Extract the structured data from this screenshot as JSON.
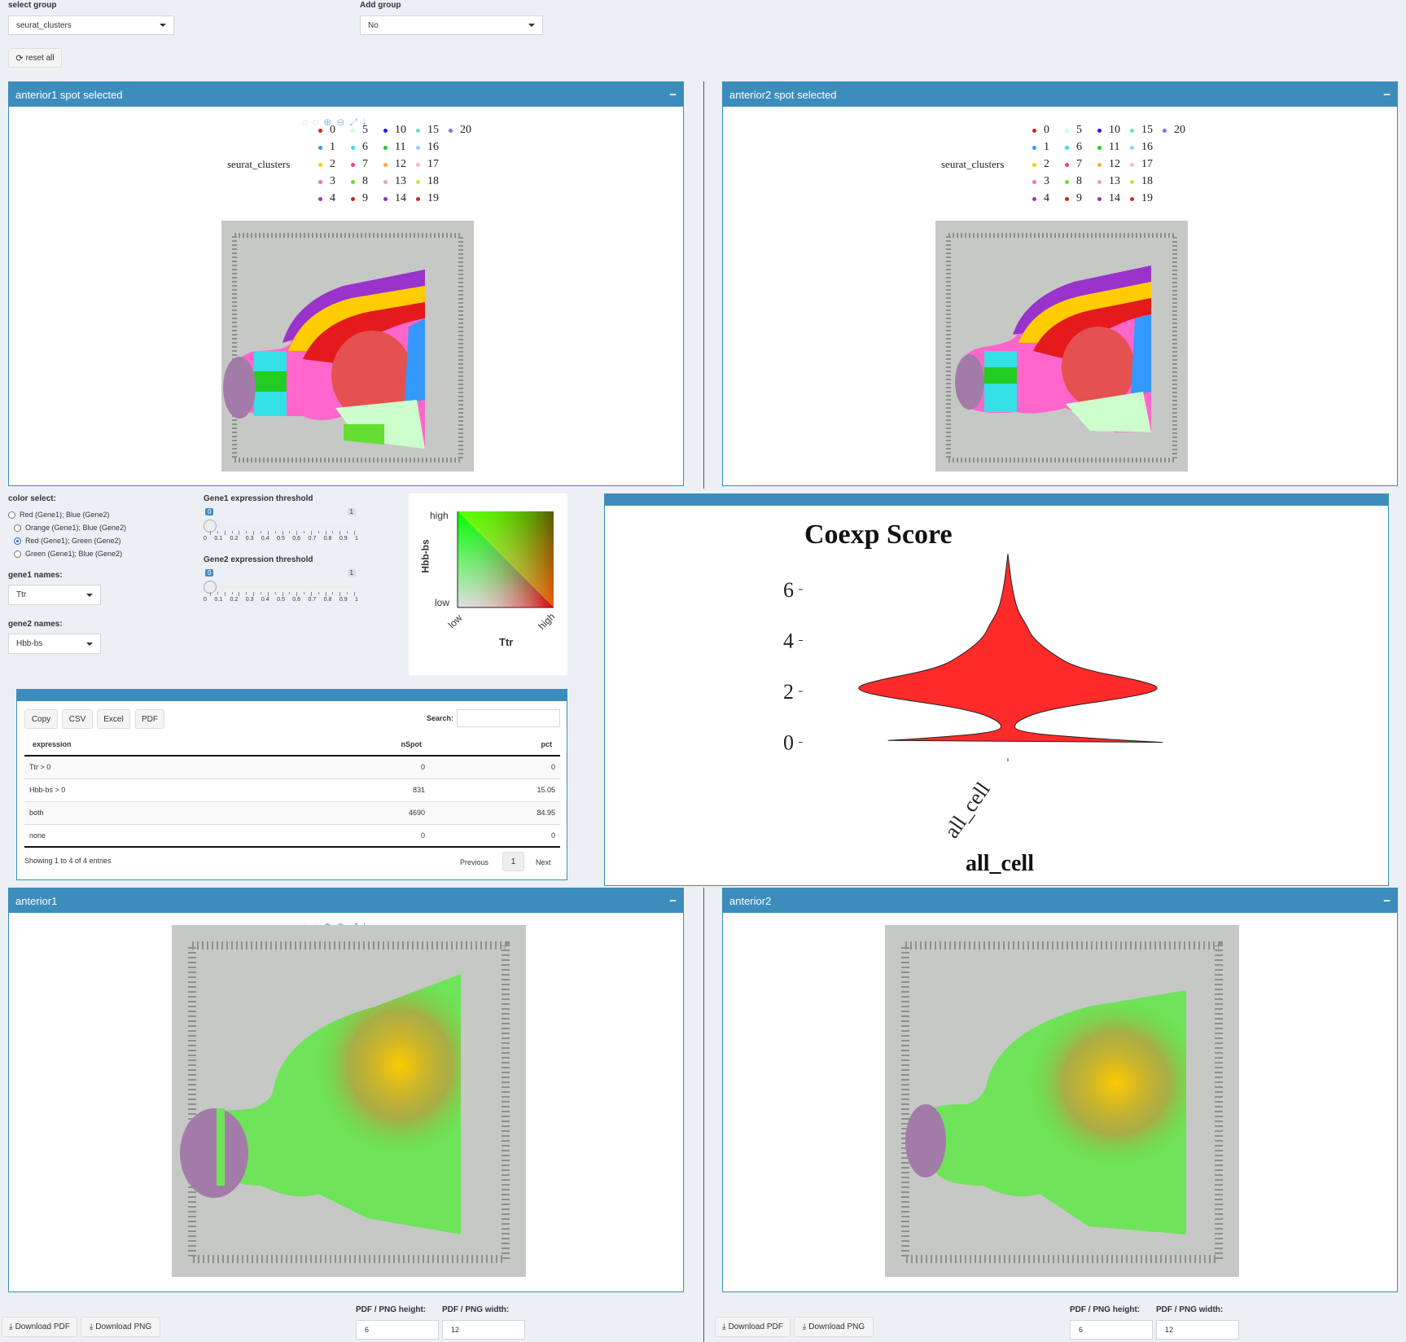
{
  "controls": {
    "select_group_label": "select group",
    "select_group_value": "seurat_clusters",
    "add_group_label": "Add group",
    "add_group_value": "No",
    "reset_label": "reset all"
  },
  "panels": {
    "spot1_title": "anterior1 spot selected",
    "spot2_title": "anterior2 spot selected",
    "legend_title": "seurat_clusters",
    "legend_items": [
      {
        "label": "0",
        "color": "#e41a1c"
      },
      {
        "label": "5",
        "color": "#ccffcc"
      },
      {
        "label": "10",
        "color": "#1a1ae6"
      },
      {
        "label": "15",
        "color": "#66e0b3"
      },
      {
        "label": "20",
        "color": "#9966e6"
      },
      {
        "label": "1",
        "color": "#3399ff"
      },
      {
        "label": "6",
        "color": "#33e0e6"
      },
      {
        "label": "11",
        "color": "#22cc22"
      },
      {
        "label": "16",
        "color": "#99ccff"
      },
      {
        "label": "",
        "color": "transparent"
      },
      {
        "label": "2",
        "color": "#ffcc00"
      },
      {
        "label": "7",
        "color": "#ff3399"
      },
      {
        "label": "12",
        "color": "#ffaa33"
      },
      {
        "label": "17",
        "color": "#ffb6c1"
      },
      {
        "label": "",
        "color": "transparent"
      },
      {
        "label": "3",
        "color": "#ff66cc"
      },
      {
        "label": "8",
        "color": "#66dd33"
      },
      {
        "label": "13",
        "color": "#e6a0c8"
      },
      {
        "label": "18",
        "color": "#dddd33"
      },
      {
        "label": "",
        "color": "transparent"
      },
      {
        "label": "4",
        "color": "#9933cc"
      },
      {
        "label": "9",
        "color": "#cc2222"
      },
      {
        "label": "14",
        "color": "#8833cc"
      },
      {
        "label": "19",
        "color": "#dd2222"
      },
      {
        "label": "",
        "color": "transparent"
      }
    ],
    "bottom1_title": "anterior1",
    "bottom2_title": "anterior2"
  },
  "color_select": {
    "label": "color select:",
    "options": [
      "Red (Gene1); Blue (Gene2)",
      "Orange (Gene1); Blue (Gene2)",
      "Red (Gene1); Green (Gene2)",
      "Green (Gene1); Blue (Gene2)"
    ],
    "selected_index": 2
  },
  "genes": {
    "gene1_label": "gene1 names:",
    "gene1_value": "Ttr",
    "gene2_label": "gene2 names:",
    "gene2_value": "Hbb-bs"
  },
  "thresholds": {
    "gene1_label": "Gene1 expression threshold",
    "gene2_label": "Gene2 expression threshold",
    "gene1_value": 0,
    "gene2_value": 0,
    "min_label": "0",
    "max_label": "1",
    "tick_labels": [
      "0",
      "0.1",
      "0.2",
      "0.3",
      "0.4",
      "0.5",
      "0.6",
      "0.7",
      "0.8",
      "0.9",
      "1"
    ]
  },
  "color_key": {
    "y_label": "Hbb-bs",
    "x_label": "Ttr",
    "high": "high",
    "low": "low"
  },
  "table": {
    "buttons": [
      "Copy",
      "CSV",
      "Excel",
      "PDF"
    ],
    "search_label": "Search:",
    "search_value": "",
    "headers": [
      "expression",
      "nSpot",
      "pct"
    ],
    "rows": [
      [
        "Ttr > 0",
        "0",
        "0"
      ],
      [
        "Hbb-bs > 0",
        "831",
        "15.05"
      ],
      [
        "both",
        "4690",
        "84.95"
      ],
      [
        "none",
        "0",
        "0"
      ]
    ],
    "info": "Showing 1 to 4 of 4 entries",
    "previous": "Previous",
    "page": "1",
    "next": "Next"
  },
  "chart_data": {
    "type": "violin",
    "title": "Coexp Score",
    "xlabel": "all_cell",
    "categories": [
      "all_cell"
    ],
    "y_ticks": [
      "0",
      "2",
      "4",
      "6"
    ],
    "ylim": [
      -0.3,
      7.5
    ],
    "fill_color": "#ff2a2a",
    "density_profile": [
      [
        0.0,
        1.0
      ],
      [
        0.15,
        0.55
      ],
      [
        0.4,
        0.05
      ],
      [
        0.8,
        0.04
      ],
      [
        1.3,
        0.25
      ],
      [
        1.8,
        0.82
      ],
      [
        2.1,
        1.0
      ],
      [
        2.4,
        0.88
      ],
      [
        2.9,
        0.45
      ],
      [
        3.5,
        0.28
      ],
      [
        4.1,
        0.16
      ],
      [
        4.6,
        0.12
      ],
      [
        5.2,
        0.06
      ],
      [
        6.0,
        0.03
      ],
      [
        6.6,
        0.015
      ],
      [
        7.4,
        0.0
      ]
    ]
  },
  "download": {
    "pdf_label": "Download PDF",
    "png_label": "Download PNG",
    "height_label": "PDF / PNG height:",
    "width_label": "PDF / PNG width:",
    "height_value": "6",
    "width_value": "12"
  }
}
